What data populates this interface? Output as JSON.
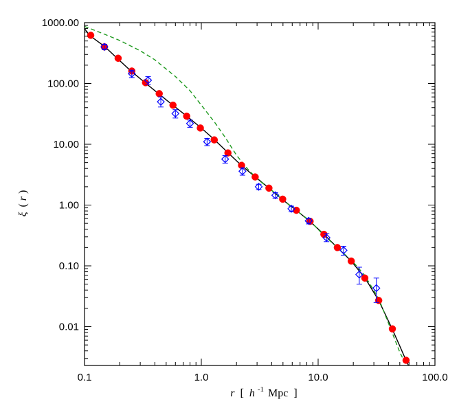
{
  "chart_data": {
    "type": "scatter",
    "xscale": "log",
    "yscale": "log",
    "xlim": [
      0.1,
      100.0
    ],
    "ylim": [
      0.0023,
      1000.0
    ],
    "grid": false,
    "xlabel": {
      "italic_symbol": "r",
      "bracket_open": "[",
      "h_symbol": "h",
      "exponent": "-1",
      "unit": "Mpc",
      "bracket_close": "]"
    },
    "ylabel": {
      "greek_symbol": "ξ",
      "open_paren": "(",
      "italic_symbol": "r",
      "close_paren": ")"
    },
    "x_ticks": [
      {
        "value": 0.1,
        "label": "0.1"
      },
      {
        "value": 1.0,
        "label": "1.0"
      },
      {
        "value": 10.0,
        "label": "10.0"
      },
      {
        "value": 100.0,
        "label": "100.0"
      }
    ],
    "y_ticks": [
      {
        "value": 1000,
        "label": "1000.00"
      },
      {
        "value": 100,
        "label": "100.00"
      },
      {
        "value": 10,
        "label": "10.00"
      },
      {
        "value": 1,
        "label": "1.00"
      },
      {
        "value": 0.1,
        "label": "0.10"
      },
      {
        "value": 0.01,
        "label": "0.01"
      }
    ],
    "series": [
      {
        "kind": "solid-line",
        "color": "#000000",
        "x": [
          0.1,
          0.11,
          0.15,
          0.19,
          0.25,
          0.33,
          0.43,
          0.57,
          0.75,
          1.0,
          1.3,
          1.7,
          2.2,
          2.9,
          3.8,
          4.9,
          6.5,
          8.5,
          11.2,
          14.6,
          19.2,
          25.2,
          33.0,
          43.0,
          50.0,
          56.5,
          60.0
        ],
        "y": [
          800,
          620,
          400,
          260,
          160,
          103,
          68,
          44,
          29,
          18.5,
          11.8,
          7.2,
          4.5,
          2.9,
          1.9,
          1.25,
          0.82,
          0.54,
          0.33,
          0.2,
          0.12,
          0.063,
          0.027,
          0.0092,
          0.0048,
          0.0028,
          0.0022
        ]
      },
      {
        "kind": "dashed-line",
        "color": "#1f9a1f",
        "x": [
          0.1,
          0.15,
          0.2,
          0.3,
          0.4,
          0.6,
          0.8,
          1.0,
          1.3,
          1.6,
          2.0,
          2.5,
          3.0,
          4.0,
          5.0,
          6.5,
          8.5,
          11.0,
          15.0,
          20.0,
          25.0,
          33.0,
          43.0,
          50.0,
          57.0
        ],
        "y": [
          870,
          640,
          510,
          345,
          245,
          130,
          76,
          44,
          23,
          13,
          6.6,
          3.9,
          2.7,
          1.75,
          1.2,
          0.82,
          0.55,
          0.33,
          0.19,
          0.115,
          0.07,
          0.029,
          0.008,
          0.0038,
          0.0023
        ]
      },
      {
        "kind": "filled-circle-markers",
        "color": "#ff0000",
        "x": [
          0.113,
          0.148,
          0.194,
          0.254,
          0.333,
          0.436,
          0.572,
          0.749,
          0.981,
          1.29,
          1.69,
          2.21,
          2.89,
          3.79,
          4.97,
          6.51,
          8.53,
          11.2,
          14.6,
          19.2,
          25.1,
          33.0,
          43.2,
          56.6
        ],
        "y": [
          620,
          400,
          260,
          160,
          103,
          68,
          44,
          29,
          18.5,
          11.8,
          7.2,
          4.5,
          2.9,
          1.9,
          1.25,
          0.82,
          0.54,
          0.33,
          0.2,
          0.12,
          0.063,
          0.027,
          0.0092,
          0.0028
        ]
      },
      {
        "kind": "open-diamond-markers-with-error-bars",
        "color": "#0000ff",
        "x": [
          0.148,
          0.254,
          0.35,
          0.45,
          0.6,
          0.8,
          1.12,
          1.6,
          2.25,
          3.1,
          4.3,
          5.9,
          8.3,
          11.8,
          16.5,
          22.5,
          31.5
        ],
        "y": [
          400,
          145,
          113,
          50,
          32,
          22,
          11,
          5.7,
          3.6,
          2.0,
          1.45,
          0.87,
          0.55,
          0.29,
          0.18,
          0.072,
          0.043
        ],
        "yerr_low": [
          360,
          125,
          95,
          41,
          27,
          19,
          9.5,
          4.9,
          3.1,
          1.8,
          1.3,
          0.78,
          0.49,
          0.25,
          0.15,
          0.05,
          0.025
        ],
        "yerr_high": [
          440,
          165,
          130,
          60,
          37,
          25,
          12.5,
          6.5,
          4.1,
          2.2,
          1.6,
          0.96,
          0.61,
          0.34,
          0.21,
          0.095,
          0.063
        ]
      }
    ]
  }
}
